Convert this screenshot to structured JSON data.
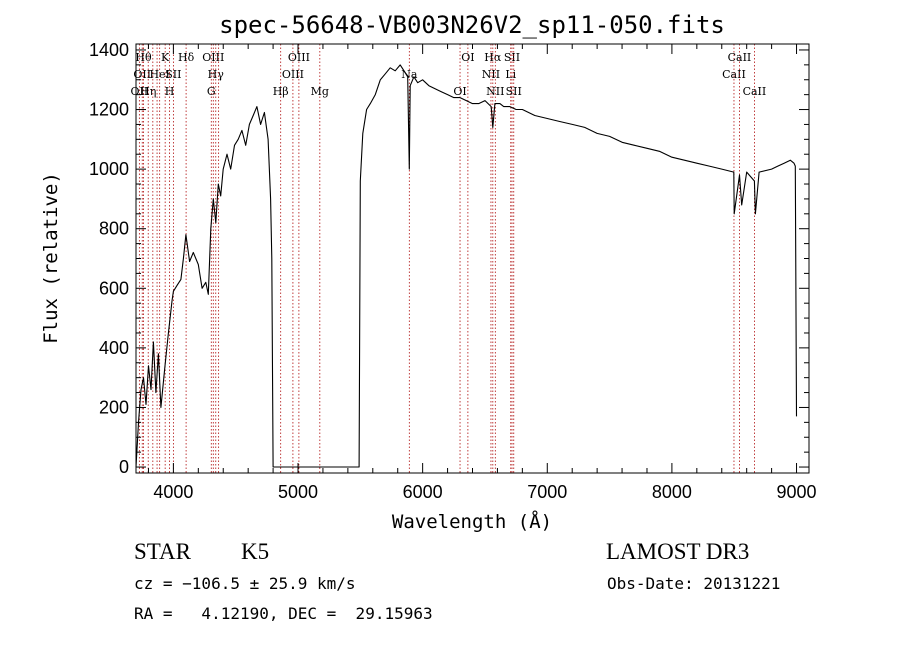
{
  "chart_data": {
    "type": "line",
    "title": "spec-56648-VB003N26V2_sp11-050.fits",
    "xlabel": "Wavelength (Å)",
    "ylabel": "Flux (relative)",
    "xlim": [
      3700,
      9100
    ],
    "ylim": [
      -20,
      1420
    ],
    "xticks": [
      4000,
      5000,
      6000,
      7000,
      8000,
      9000
    ],
    "yticks": [
      0,
      200,
      400,
      600,
      800,
      1000,
      1200,
      1400
    ],
    "series": [
      {
        "name": "flux",
        "x": [
          3700,
          3720,
          3740,
          3760,
          3780,
          3800,
          3820,
          3840,
          3860,
          3880,
          3900,
          3930,
          3960,
          3990,
          4000,
          4030,
          4060,
          4080,
          4100,
          4130,
          4160,
          4200,
          4230,
          4260,
          4280,
          4300,
          4320,
          4340,
          4360,
          4380,
          4400,
          4430,
          4460,
          4490,
          4520,
          4550,
          4580,
          4610,
          4640,
          4670,
          4700,
          4730,
          4760,
          4780,
          4790,
          4800,
          5490,
          5500,
          5520,
          5550,
          5580,
          5620,
          5660,
          5700,
          5740,
          5780,
          5820,
          5850,
          5880,
          5893,
          5900,
          5930,
          5960,
          6000,
          6050,
          6100,
          6150,
          6200,
          6250,
          6300,
          6350,
          6400,
          6450,
          6500,
          6550,
          6563,
          6580,
          6620,
          6650,
          6700,
          6750,
          6800,
          6900,
          7000,
          7100,
          7200,
          7300,
          7400,
          7500,
          7600,
          7700,
          7800,
          7900,
          8000,
          8100,
          8200,
          8300,
          8400,
          8497,
          8500,
          8542,
          8560,
          8600,
          8662,
          8670,
          8700,
          8800,
          8850,
          8900,
          8950,
          8980,
          8990,
          9000
        ],
        "values": [
          0,
          150,
          260,
          300,
          210,
          340,
          260,
          420,
          250,
          380,
          200,
          330,
          450,
          560,
          590,
          610,
          630,
          700,
          780,
          690,
          720,
          680,
          600,
          620,
          580,
          800,
          900,
          820,
          950,
          910,
          1000,
          1050,
          1000,
          1080,
          1100,
          1130,
          1080,
          1150,
          1180,
          1210,
          1150,
          1190,
          1100,
          900,
          700,
          0,
          0,
          960,
          1120,
          1200,
          1220,
          1250,
          1300,
          1320,
          1340,
          1330,
          1350,
          1330,
          1310,
          1000,
          1280,
          1310,
          1290,
          1300,
          1280,
          1270,
          1260,
          1250,
          1240,
          1240,
          1230,
          1220,
          1220,
          1230,
          1210,
          1140,
          1220,
          1220,
          1210,
          1210,
          1200,
          1200,
          1180,
          1170,
          1160,
          1150,
          1140,
          1120,
          1110,
          1090,
          1080,
          1070,
          1060,
          1040,
          1030,
          1020,
          1010,
          1000,
          990,
          850,
          980,
          880,
          990,
          960,
          850,
          990,
          1000,
          1010,
          1020,
          1030,
          1020,
          1010,
          170
        ]
      }
    ],
    "line_markers": [
      {
        "w": 3727,
        "label": "OII",
        "row": 2
      },
      {
        "w": 3750,
        "label": "OII",
        "row": 1
      },
      {
        "w": 3760,
        "label": "Hθ",
        "row": 0
      },
      {
        "w": 3798,
        "label": "Hη",
        "row": 2
      },
      {
        "w": 3835,
        "label": "",
        "row": 0
      },
      {
        "w": 3869,
        "label": "",
        "row": 0
      },
      {
        "w": 3890,
        "label": "HeI",
        "row": 1
      },
      {
        "w": 3934,
        "label": "K",
        "row": 0
      },
      {
        "w": 3969,
        "label": "H",
        "row": 2
      },
      {
        "w": 4000,
        "label": "SII",
        "row": 1
      },
      {
        "w": 4102,
        "label": "Hδ",
        "row": 0
      },
      {
        "w": 4304,
        "label": "G",
        "row": 2
      },
      {
        "w": 4320,
        "label": "OIII",
        "row": 0
      },
      {
        "w": 4340,
        "label": "Hγ",
        "row": 1
      },
      {
        "w": 4363,
        "label": "",
        "row": 0
      },
      {
        "w": 4861,
        "label": "Hβ",
        "row": 2
      },
      {
        "w": 4959,
        "label": "OIII",
        "row": 1
      },
      {
        "w": 5007,
        "label": "OIII",
        "row": 0
      },
      {
        "w": 5175,
        "label": "Mg",
        "row": 2
      },
      {
        "w": 5893,
        "label": "Na",
        "row": 1
      },
      {
        "w": 6300,
        "label": "OI",
        "row": 2
      },
      {
        "w": 6363,
        "label": "OI",
        "row": 0
      },
      {
        "w": 6548,
        "label": "NII",
        "row": 1
      },
      {
        "w": 6563,
        "label": "Hα",
        "row": 0
      },
      {
        "w": 6583,
        "label": "NII",
        "row": 2
      },
      {
        "w": 6707,
        "label": "Li",
        "row": 1
      },
      {
        "w": 6717,
        "label": "SII",
        "row": 0
      },
      {
        "w": 6731,
        "label": "SII",
        "row": 2
      },
      {
        "w": 8498,
        "label": "CaII",
        "row": 1
      },
      {
        "w": 8542,
        "label": "CaII",
        "row": 0
      },
      {
        "w": 8662,
        "label": "CaII",
        "row": 2
      }
    ]
  },
  "info": {
    "object_class": "STAR",
    "subclass": "K5",
    "survey": "LAMOST DR3",
    "cz": "cz = −106.5 ± 25.9 km/s",
    "obs_date": "Obs-Date: 20131221",
    "coords": "RA =   4.12190, DEC =  29.15963"
  }
}
